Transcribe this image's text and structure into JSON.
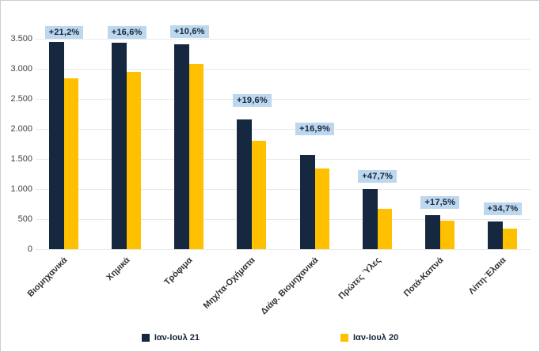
{
  "chart_data": {
    "type": "bar",
    "title": "",
    "xlabel": "",
    "ylabel": "",
    "categories": [
      "Βιομηχανικά",
      "Χημικά",
      "Τρόφιμα",
      "Μηχ/τα-Οχήματα",
      "Διάφ. Βιομηχανικά",
      "Πρώτες Ύλες",
      "Ποτά-Καπνά",
      "Λίπη-Έλαια"
    ],
    "series": [
      {
        "name": "Ιαν-Ιουλ 21",
        "color": "#152840",
        "values": [
          3450,
          3430,
          3410,
          2160,
          1570,
          1000,
          560,
          455
        ]
      },
      {
        "name": "Ιαν-Ιουλ 20",
        "color": "#FFC000",
        "values": [
          2847,
          2942,
          3083,
          1806,
          1343,
          677,
          477,
          338
        ]
      }
    ],
    "pct_labels": [
      "+21,2%",
      "+16,6%",
      "+10,6%",
      "+19,6%",
      "+16,9%",
      "+47,7%",
      "+17,5%",
      "+34,7%"
    ],
    "pct_label_bg": "#BDD7EE",
    "pct_label_color": "#17263B",
    "y_ticks": [
      {
        "label": "0",
        "value": 0
      },
      {
        "label": "500",
        "value": 500
      },
      {
        "label": "1.000",
        "value": 1000
      },
      {
        "label": "1.500",
        "value": 1500
      },
      {
        "label": "2.000",
        "value": 2000
      },
      {
        "label": "2.500",
        "value": 2500
      },
      {
        "label": "3.000",
        "value": 3000
      },
      {
        "label": "3.500",
        "value": 3500
      }
    ],
    "ylim": [
      0,
      3500
    ],
    "grid": true,
    "legend_position": "bottom"
  }
}
